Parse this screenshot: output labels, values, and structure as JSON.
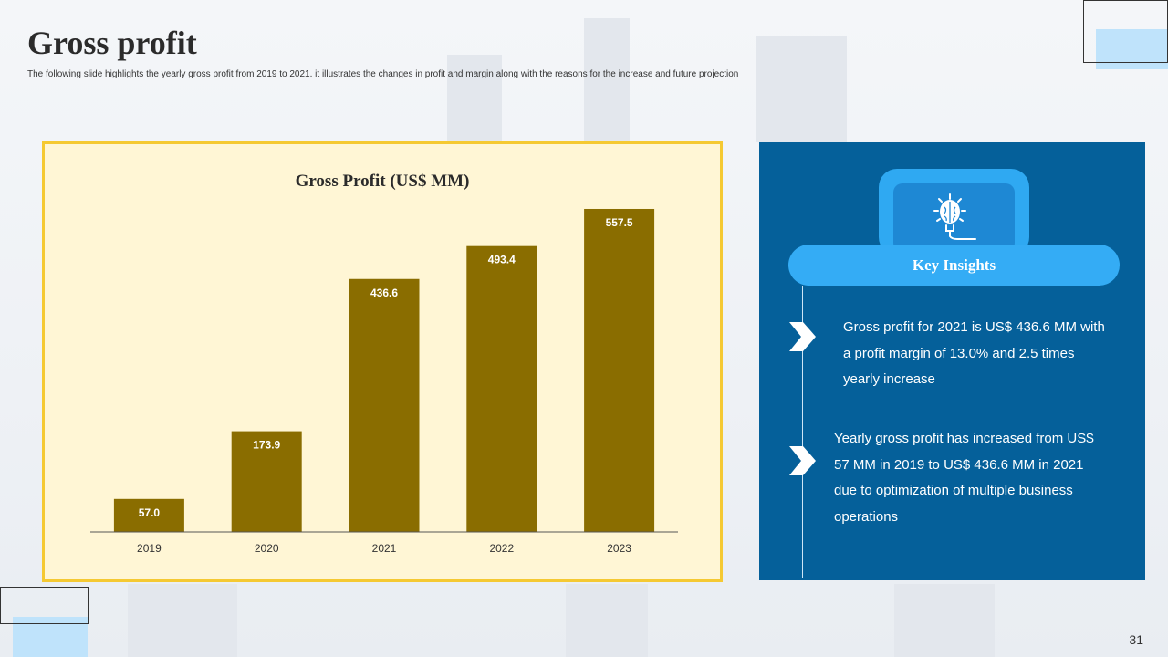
{
  "slide": {
    "title": "Gross profit",
    "subtitle": "The following slide highlights the yearly gross profit from 2019 to 2021. it illustrates the changes in profit and margin along with the reasons  for the increase and future projection",
    "page_number": "31"
  },
  "chart_data": {
    "type": "bar",
    "title": "Gross Profit (US$ MM)",
    "categories": [
      "2019",
      "2020",
      "2021",
      "2022",
      "2023"
    ],
    "values": [
      57.0,
      173.9,
      436.6,
      493.4,
      557.5
    ],
    "value_labels": [
      "57.0",
      "173.9",
      "436.6",
      "493.4",
      "557.5"
    ],
    "ylim": [
      0,
      600
    ],
    "grid": false,
    "bar_color": "#8a6d00"
  },
  "insights": {
    "heading": "Key Insights",
    "icon": "brain-bulb-icon",
    "items": [
      {
        "text": "Gross profit for 2021 is US$ 436.6 MM with a profit margin of 13.0% and 2.5 times yearly increase"
      },
      {
        "text": "Yearly gross profit has increased from US$ 57 MM in 2019 to US$ 436.6 MM in 2021 due to optimization of  multiple business operations"
      }
    ]
  },
  "colors": {
    "panel_blue": "#05609a",
    "accent_blue": "#34acf5",
    "chart_bg": "#fff6d5",
    "chart_border": "#f5c932"
  }
}
